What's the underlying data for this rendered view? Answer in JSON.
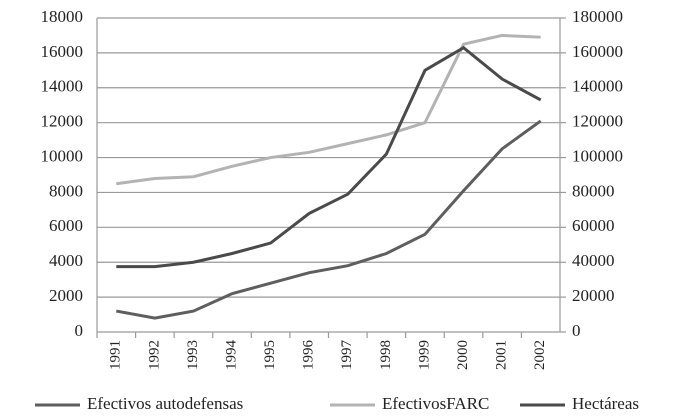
{
  "chart_data": {
    "type": "line",
    "categories": [
      "1991",
      "1992",
      "1993",
      "1994",
      "1995",
      "1996",
      "1997",
      "1998",
      "1999",
      "2000",
      "2001",
      "2002"
    ],
    "series": [
      {
        "name": "Efectivos autodefensas",
        "color": "#5e5e5e",
        "values": [
          1200,
          800,
          1200,
          2200,
          2800,
          3400,
          3800,
          4500,
          5600,
          8100,
          10500,
          12100
        ]
      },
      {
        "name": "EfectivosFARC",
        "color": "#b3b3b3",
        "values": [
          8500,
          8800,
          8900,
          9500,
          10000,
          10300,
          10800,
          11300,
          12000,
          16500,
          17000,
          16900
        ]
      },
      {
        "name": "Hectáreas",
        "color": "#4a4a4a",
        "axis": "y2",
        "values": [
          37500,
          37500,
          40000,
          45000,
          51000,
          68000,
          79000,
          102000,
          150000,
          163000,
          145000,
          133000
        ]
      }
    ],
    "ylim": [
      0,
      18000
    ],
    "yticks": [
      0,
      2000,
      4000,
      6000,
      8000,
      10000,
      12000,
      14000,
      16000,
      18000
    ],
    "y2lim": [
      0,
      180000
    ],
    "y2ticks": [
      0,
      20000,
      40000,
      60000,
      80000,
      100000,
      120000,
      140000,
      160000,
      180000
    ],
    "grid": true,
    "legend": "bottom"
  }
}
